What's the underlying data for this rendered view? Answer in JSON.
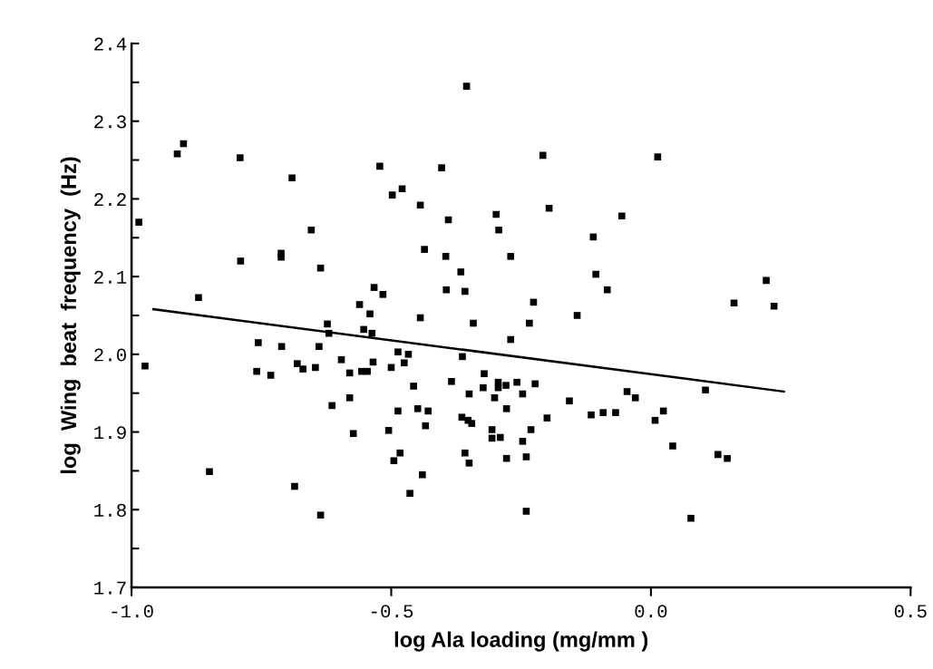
{
  "chart_data": {
    "type": "scatter",
    "xlabel": "log Ala loading (mg/mm )",
    "ylabel": "log  Wing  beat  frequency  (Hz)",
    "xlim": [
      -1.0,
      0.5
    ],
    "ylim": [
      1.7,
      2.4
    ],
    "xticks": [
      {
        "value": -1.0,
        "label": "-1.0"
      },
      {
        "value": -0.5,
        "label": "-0.5"
      },
      {
        "value": 0.0,
        "label": "0.0"
      },
      {
        "value": 0.5,
        "label": "0.5"
      }
    ],
    "yticks": [
      {
        "value": 1.7,
        "label": "1.7"
      },
      {
        "value": 1.75,
        "label": null
      },
      {
        "value": 1.8,
        "label": "1.8"
      },
      {
        "value": 1.85,
        "label": null
      },
      {
        "value": 1.9,
        "label": "1.9"
      },
      {
        "value": 1.95,
        "label": null
      },
      {
        "value": 2.0,
        "label": "2.0"
      },
      {
        "value": 2.05,
        "label": null
      },
      {
        "value": 2.1,
        "label": "2.1"
      },
      {
        "value": 2.15,
        "label": null
      },
      {
        "value": 2.2,
        "label": "2.2"
      },
      {
        "value": 2.25,
        "label": null
      },
      {
        "value": 2.3,
        "label": "2.3"
      },
      {
        "value": 2.35,
        "label": null
      },
      {
        "value": 2.4,
        "label": "2.4"
      }
    ],
    "grid": false,
    "series": [
      {
        "color": "#000000",
        "marker": "square",
        "x": [
          -0.986,
          -0.974,
          -0.912,
          -0.9,
          -0.871,
          -0.85,
          -0.791,
          -0.79,
          -0.759,
          -0.756,
          -0.732,
          -0.712,
          -0.712,
          -0.711,
          -0.691,
          -0.686,
          -0.681,
          -0.67,
          -0.654,
          -0.646,
          -0.639,
          -0.636,
          -0.636,
          -0.623,
          -0.62,
          -0.614,
          -0.596,
          -0.58,
          -0.58,
          -0.573,
          -0.561,
          -0.557,
          -0.553,
          -0.546,
          -0.541,
          -0.537,
          -0.535,
          -0.533,
          -0.522,
          -0.516,
          -0.505,
          -0.5,
          -0.498,
          -0.495,
          -0.487,
          -0.487,
          -0.483,
          -0.479,
          -0.475,
          -0.467,
          -0.464,
          -0.457,
          -0.449,
          -0.444,
          -0.444,
          -0.44,
          -0.436,
          -0.434,
          -0.429,
          -0.403,
          -0.395,
          -0.394,
          -0.39,
          -0.384,
          -0.366,
          -0.364,
          -0.363,
          -0.358,
          -0.358,
          -0.355,
          -0.352,
          -0.35,
          -0.35,
          -0.345,
          -0.342,
          -0.321,
          -0.323,
          -0.306,
          -0.306,
          -0.301,
          -0.298,
          -0.294,
          -0.294,
          -0.293,
          -0.29,
          -0.279,
          -0.278,
          -0.278,
          -0.27,
          -0.27,
          -0.258,
          -0.247,
          -0.247,
          -0.24,
          -0.24,
          -0.234,
          -0.231,
          -0.226,
          -0.223,
          -0.208,
          -0.2,
          -0.196,
          -0.157,
          -0.142,
          -0.115,
          -0.111,
          -0.106,
          -0.092,
          -0.084,
          -0.068,
          -0.056,
          -0.046,
          -0.03,
          0.008,
          0.013,
          0.024,
          0.042,
          0.077,
          0.105,
          0.129,
          0.147,
          0.16,
          0.222,
          0.237
        ],
        "values": [
          2.17,
          1.985,
          2.258,
          2.271,
          2.073,
          1.849,
          2.253,
          2.12,
          1.978,
          2.015,
          1.973,
          2.13,
          2.125,
          2.01,
          2.227,
          1.83,
          1.988,
          1.981,
          2.16,
          1.983,
          2.01,
          2.111,
          1.793,
          2.039,
          2.027,
          1.934,
          1.993,
          1.944,
          1.976,
          1.898,
          2.064,
          1.978,
          2.032,
          1.978,
          2.052,
          2.027,
          1.99,
          2.086,
          2.242,
          2.077,
          1.902,
          1.983,
          2.205,
          1.863,
          2.003,
          1.927,
          1.873,
          2.213,
          1.989,
          2.0,
          1.821,
          1.959,
          1.93,
          2.192,
          2.047,
          1.845,
          2.135,
          1.908,
          1.927,
          2.24,
          2.126,
          2.083,
          2.173,
          1.965,
          2.106,
          1.919,
          1.997,
          1.873,
          2.081,
          2.345,
          1.915,
          1.86,
          1.949,
          1.911,
          2.04,
          1.975,
          1.957,
          1.903,
          1.892,
          1.944,
          2.18,
          1.964,
          1.957,
          2.16,
          1.893,
          1.96,
          1.93,
          1.866,
          2.126,
          2.019,
          1.964,
          1.949,
          1.888,
          1.868,
          1.798,
          2.04,
          1.903,
          2.067,
          1.962,
          2.256,
          1.918,
          2.188,
          1.94,
          2.05,
          1.922,
          2.151,
          2.103,
          1.925,
          2.083,
          1.925,
          2.178,
          1.952,
          1.944,
          1.915,
          2.254,
          1.927,
          1.882,
          1.789,
          1.954,
          1.871,
          1.866,
          2.066,
          2.095,
          2.062
        ]
      },
      {
        "type": "line",
        "color": "#000000",
        "marker": "none",
        "line_style": "solid",
        "x": [
          -0.958,
          0.256
        ],
        "values": [
          2.058,
          1.952
        ]
      }
    ]
  }
}
